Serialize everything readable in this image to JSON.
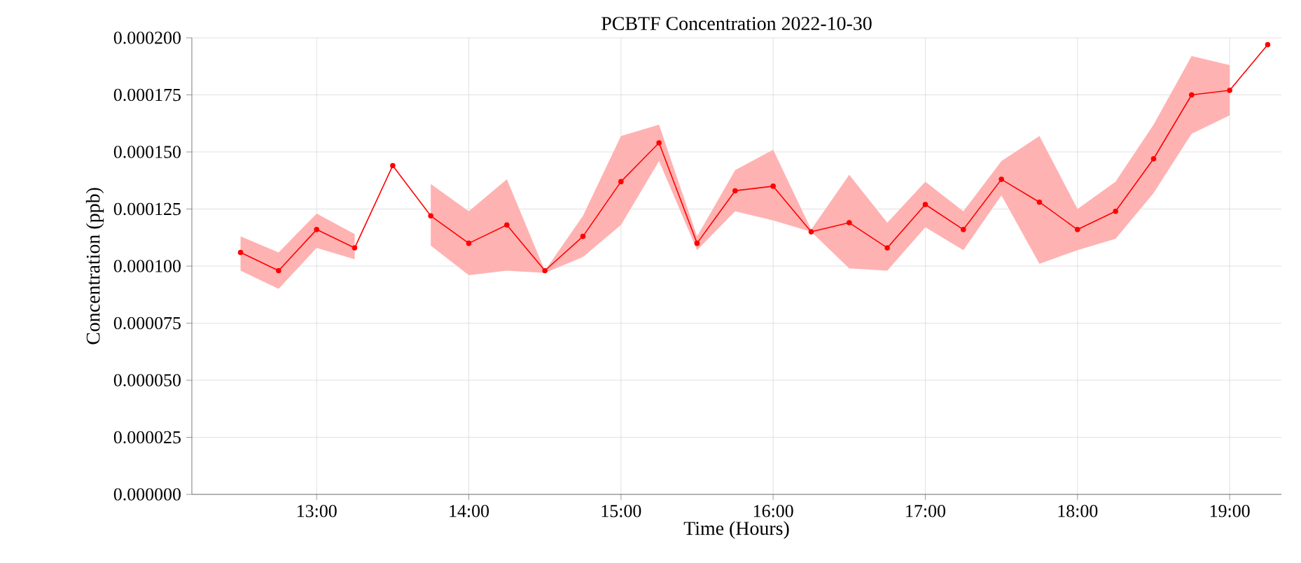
{
  "chart_data": {
    "type": "line",
    "title": "PCBTF Concentration 2022-10-30",
    "xlabel": "Time (Hours)",
    "ylabel": "Concentration (ppb)",
    "x": [
      12.5,
      12.75,
      13.0,
      13.25,
      13.5,
      13.75,
      14.0,
      14.25,
      14.5,
      14.75,
      15.0,
      15.25,
      15.5,
      15.75,
      16.0,
      16.25,
      16.5,
      16.75,
      17.0,
      17.25,
      17.5,
      17.75,
      18.0,
      18.25,
      18.5,
      18.75,
      19.0,
      19.25
    ],
    "series": [
      {
        "color": "#ff0000",
        "values": [
          0.000106,
          9.8e-05,
          0.000116,
          0.000108,
          0.000144,
          0.000122,
          0.00011,
          0.000118,
          9.8e-05,
          0.000113,
          0.000137,
          0.000154,
          0.00011,
          0.000133,
          0.000135,
          0.000115,
          0.000119,
          0.000108,
          0.000127,
          0.000116,
          0.000138,
          0.000128,
          0.000116,
          0.000124,
          0.000147,
          0.000175,
          0.000177,
          0.000197
        ],
        "lower": [
          9.8e-05,
          9e-05,
          0.000108,
          0.000103,
          null,
          0.000109,
          9.6e-05,
          9.8e-05,
          9.7e-05,
          0.000104,
          0.000118,
          0.000146,
          0.000107,
          0.000124,
          0.00012,
          0.000115,
          9.9e-05,
          9.8e-05,
          0.000117,
          0.000107,
          0.000131,
          0.000101,
          0.000107,
          0.000112,
          0.000132,
          0.000158,
          0.000166,
          null
        ],
        "upper": [
          0.000113,
          0.000106,
          0.000123,
          0.000114,
          null,
          0.000136,
          0.000124,
          0.000138,
          9.8e-05,
          0.000122,
          0.000157,
          0.000162,
          0.000113,
          0.000142,
          0.000151,
          0.000116,
          0.00014,
          0.000119,
          0.000137,
          0.000124,
          0.000146,
          0.000157,
          0.000125,
          0.000137,
          0.000162,
          0.000192,
          0.000188,
          null
        ]
      }
    ],
    "xlim": [
      12.18,
      19.34
    ],
    "xticks": [
      {
        "value": 13,
        "label": "13:00"
      },
      {
        "value": 14,
        "label": "14:00"
      },
      {
        "value": 15,
        "label": "15:00"
      },
      {
        "value": 16,
        "label": "16:00"
      },
      {
        "value": 17,
        "label": "17:00"
      },
      {
        "value": 18,
        "label": "18:00"
      },
      {
        "value": 19,
        "label": "19:00"
      }
    ],
    "ylim": [
      0,
      0.0002
    ],
    "yticks": [
      {
        "value": 0,
        "label": "0.000000"
      },
      {
        "value": 2.5e-05,
        "label": "0.000025"
      },
      {
        "value": 5e-05,
        "label": "0.000050"
      },
      {
        "value": 7.5e-05,
        "label": "0.000075"
      },
      {
        "value": 0.0001,
        "label": "0.000100"
      },
      {
        "value": 0.000125,
        "label": "0.000125"
      },
      {
        "value": 0.00015,
        "label": "0.000150"
      },
      {
        "value": 0.000175,
        "label": "0.000175"
      },
      {
        "value": 0.0002,
        "label": "0.000200"
      }
    ],
    "grid": true,
    "marker": "circle",
    "line_style": "solid"
  }
}
